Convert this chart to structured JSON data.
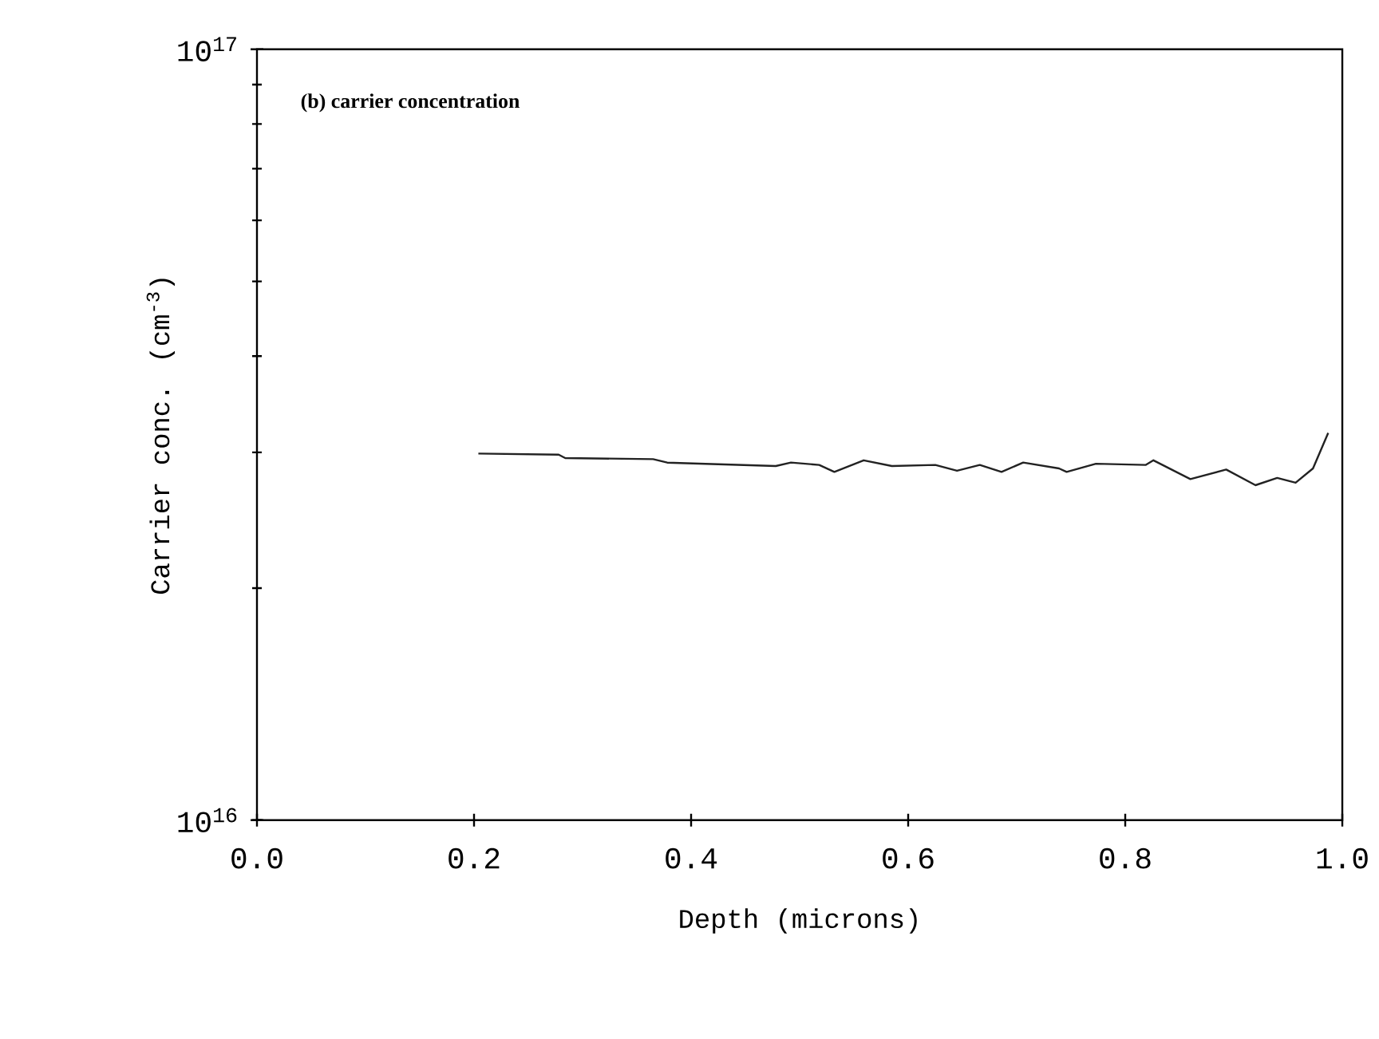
{
  "chart_data": {
    "type": "line",
    "xlabel": "Depth (microns)",
    "ylabel": "Carrier conc. (cm$^{-3}$)",
    "annotations": [
      "(b) carrier concentration"
    ],
    "log": "y",
    "grid": false,
    "xlim": [
      0,
      1.0
    ],
    "ylim": [
      1e+16,
      1e+17
    ],
    "xticks": [
      {
        "value": 0,
        "label": "0.0"
      },
      {
        "value": 0.2,
        "label": "0.2"
      },
      {
        "value": 0.4,
        "label": "0.4"
      },
      {
        "value": 0.6,
        "label": "0.6"
      },
      {
        "value": 0.8,
        "label": "0.8"
      },
      {
        "value": 1.0,
        "label": "1.0"
      }
    ],
    "yticks": [
      {
        "value": 1e+16,
        "label": "10$^{16}$"
      },
      {
        "value": 1e+17,
        "label": "10$^{17}$"
      }
    ],
    "series": [
      {
        "color": "#222222",
        "x": [
          0.204,
          0.278,
          0.284,
          0.365,
          0.378,
          0.478,
          0.492,
          0.518,
          0.532,
          0.559,
          0.585,
          0.625,
          0.645,
          0.666,
          0.686,
          0.706,
          0.739,
          0.746,
          0.773,
          0.819,
          0.826,
          0.86,
          0.893,
          0.92,
          0.94,
          0.957,
          0.973,
          0.987
        ],
        "values": [
          2.99e+16,
          2.98e+16,
          2.95e+16,
          2.94e+16,
          2.91e+16,
          2.88e+16,
          2.91e+16,
          2.89e+16,
          2.83e+16,
          2.93e+16,
          2.88e+16,
          2.89e+16,
          2.84e+16,
          2.89e+16,
          2.83e+16,
          2.91e+16,
          2.86e+16,
          2.83e+16,
          2.9e+16,
          2.89e+16,
          2.93e+16,
          2.77e+16,
          2.85e+16,
          2.72e+16,
          2.78e+16,
          2.74e+16,
          2.86e+16,
          3.18e+16
        ]
      }
    ]
  }
}
